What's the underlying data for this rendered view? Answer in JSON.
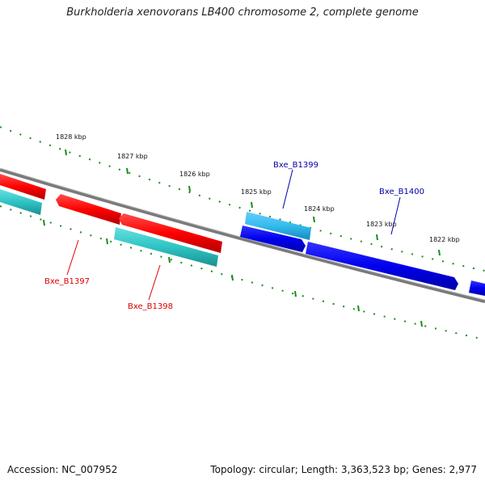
{
  "title": "Burkholderia xenovorans LB400 chromosome 2, complete genome",
  "footer": {
    "accession": "Accession: NC_007952",
    "summary": "Topology: circular; Length: 3,363,523 bp; Genes: 2,977"
  },
  "kbp_labels": [
    "1828 kbp",
    "1827 kbp",
    "1826 kbp",
    "1825 kbp",
    "1824 kbp",
    "1823 kbp",
    "1822 kbp"
  ],
  "genes": [
    {
      "label": "Bxe_B1397",
      "color": "#dd0000"
    },
    {
      "label": "Bxe_B1398",
      "color": "#dd0000"
    },
    {
      "label": "Bxe_B1399",
      "color": "#0000aa"
    },
    {
      "label": "Bxe_B1400",
      "color": "#0000aa"
    }
  ],
  "colors": {
    "forward_strand": "#ff1a1a",
    "forward_strand_alt": "#33c8c8",
    "reverse_strand": "#0000ee",
    "reverse_strand_alt": "#33bbee",
    "backbone": "#808080",
    "ticks": "#1a8c1a"
  }
}
